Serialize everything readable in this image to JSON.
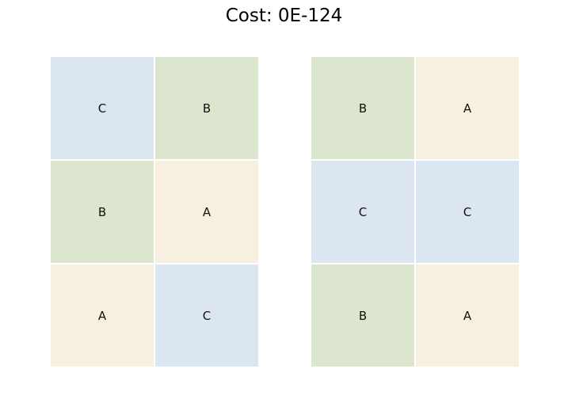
{
  "title": "Cost: 0E-124",
  "colors": {
    "A": "#f7efdf",
    "B": "#dce6cf",
    "C": "#dbe6f0"
  },
  "grids": [
    {
      "cells": [
        [
          "C",
          "B"
        ],
        [
          "B",
          "A"
        ],
        [
          "A",
          "C"
        ]
      ]
    },
    {
      "cells": [
        [
          "B",
          "A"
        ],
        [
          "C",
          "C"
        ],
        [
          "B",
          "A"
        ]
      ]
    }
  ]
}
